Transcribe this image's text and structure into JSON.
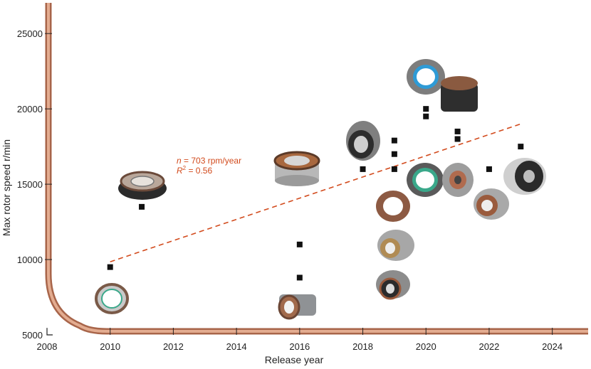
{
  "chart_data": {
    "type": "scatter",
    "title": "",
    "xlabel": "Release year",
    "ylabel": "Max rotor speed r/min",
    "xlim": [
      2008,
      2025
    ],
    "ylim": [
      5000,
      26000
    ],
    "xticks": [
      2008,
      2010,
      2012,
      2014,
      2016,
      2018,
      2020,
      2022,
      2024
    ],
    "yticks": [
      5000,
      10000,
      15000,
      20000,
      25000
    ],
    "series": [
      {
        "name": "Motors",
        "x": [
          2010,
          2011,
          2016,
          2016,
          2018,
          2019,
          2019,
          2019,
          2020,
          2020,
          2021,
          2021,
          2022,
          2023
        ],
        "y": [
          9500,
          13500,
          11000,
          8800,
          16000,
          17900,
          17000,
          16000,
          20000,
          19500,
          18500,
          18000,
          16000,
          17500
        ]
      }
    ],
    "trendline": {
      "x": [
        2010,
        2023
      ],
      "y": [
        9850,
        19000
      ],
      "color": "#d24a1c",
      "style": "dashed"
    },
    "annotation": {
      "slope_var": "n",
      "slope_text": " = 703 rpm/year",
      "r2_var": "R",
      "r2_sup": "2",
      "r2_text": " = 0.56"
    },
    "colors": {
      "marker": "#111111",
      "axis_copper": "#c98a6a",
      "trend": "#d24a1c"
    }
  }
}
